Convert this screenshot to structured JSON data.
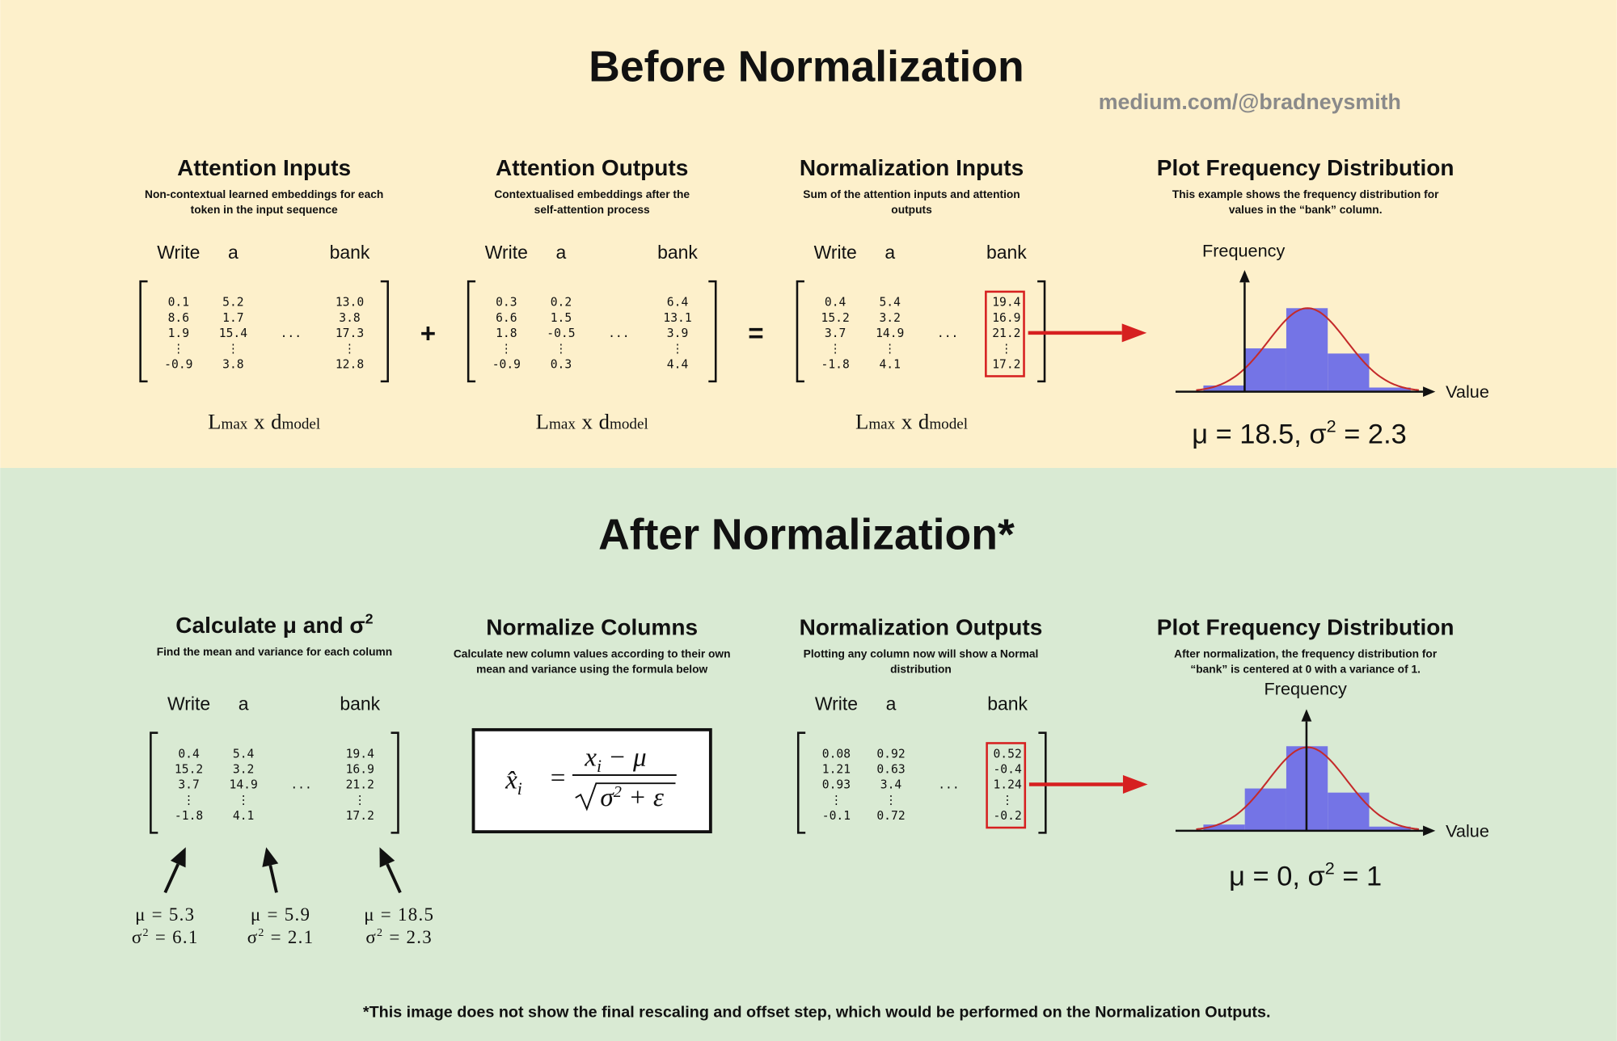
{
  "before": {
    "title": "Before Normalization",
    "source": "medium.com/@bradneysmith",
    "panels": [
      {
        "title": "Attention Inputs",
        "subtitle": [
          "Non-contextual learned embeddings for each",
          "token in the input sequence"
        ],
        "matrix": {
          "headers": [
            "Write",
            "a",
            "bank"
          ],
          "columns": [
            [
              "0.1",
              "8.6",
              "1.9",
              "⋮",
              "-0.9"
            ],
            [
              "5.2",
              "1.7",
              "15.4",
              "⋮",
              "3.8"
            ],
            [
              "13.0",
              "3.8",
              "17.3",
              "⋮",
              "12.8"
            ]
          ],
          "hdots": "..."
        },
        "dims": {
          "rows": "L",
          "rows_sub": "max",
          "times": "x",
          "cols": "d",
          "cols_sub": "model"
        }
      },
      {
        "title": "Attention Outputs",
        "subtitle": [
          "Contextualised embeddings after the",
          "self-attention process"
        ],
        "matrix": {
          "headers": [
            "Write",
            "a",
            "bank"
          ],
          "columns": [
            [
              "0.3",
              "6.6",
              "1.8",
              "⋮",
              "-0.9"
            ],
            [
              "0.2",
              "1.5",
              "-0.5",
              "⋮",
              "0.3"
            ],
            [
              "6.4",
              "13.1",
              "3.9",
              "⋮",
              "4.4"
            ]
          ],
          "hdots": "..."
        },
        "dims": {
          "rows": "L",
          "rows_sub": "max",
          "times": "x",
          "cols": "d",
          "cols_sub": "model"
        }
      },
      {
        "title": "Normalization Inputs",
        "subtitle": [
          "Sum of the attention inputs and attention",
          "outputs"
        ],
        "matrix": {
          "headers": [
            "Write",
            "a",
            "bank"
          ],
          "columns": [
            [
              "0.4",
              "15.2",
              "3.7",
              "⋮",
              "-1.8"
            ],
            [
              "5.4",
              "3.2",
              "14.9",
              "⋮",
              "4.1"
            ],
            [
              "19.4",
              "16.9",
              "21.2",
              "⋮",
              "17.2"
            ]
          ],
          "hdots": "..."
        },
        "dims": {
          "rows": "L",
          "rows_sub": "max",
          "times": "x",
          "cols": "d",
          "cols_sub": "model"
        }
      }
    ],
    "operators": [
      "+",
      "="
    ],
    "plot": {
      "title": "Plot Frequency Distribution",
      "subtitle": [
        "This example shows the frequency distribution for",
        "values in the “bank” column."
      ],
      "y_label": "Frequency",
      "x_label": "Value",
      "stats": {
        "text": "μ = 18.5, σ",
        "sup": "2",
        "rest": " = 2.3"
      }
    }
  },
  "after": {
    "title": "After Normalization*",
    "calculate": {
      "title": "Calculate μ and σ",
      "title_sup": "2",
      "subtitle": [
        "Find the mean and variance for each column"
      ],
      "matrix": {
        "headers": [
          "Write",
          "a",
          "bank"
        ],
        "columns": [
          [
            "0.4",
            "15.2",
            "3.7",
            "⋮",
            "-1.8"
          ],
          [
            "5.4",
            "3.2",
            "14.9",
            "⋮",
            "4.1"
          ],
          [
            "19.4",
            "16.9",
            "21.2",
            "⋮",
            "17.2"
          ]
        ],
        "hdots": "..."
      },
      "stats": [
        {
          "mean": "μ = 5.3",
          "var": "σ",
          "var_sup": "2",
          "var_rest": " = 6.1"
        },
        {
          "mean": "μ = 5.9",
          "var": "σ",
          "var_sup": "2",
          "var_rest": " = 2.1"
        },
        {
          "mean": "μ = 18.5",
          "var": "σ",
          "var_sup": "2",
          "var_rest": " = 2.3"
        }
      ]
    },
    "normalize": {
      "title": "Normalize Columns",
      "subtitle": [
        "Calculate new column values according to their own",
        "mean and variance using the formula below"
      ],
      "formula": {
        "lhs": "x̂",
        "lhs_sub": "i",
        "eq": "=",
        "num": "x",
        "num_sub": "i",
        "num_rest": " − μ",
        "den": "σ",
        "den_sup": "2",
        "den_rest": " + ε"
      }
    },
    "outputs": {
      "title": "Normalization Outputs",
      "subtitle": [
        "Plotting any column now will show a Normal",
        "distribution"
      ],
      "matrix": {
        "headers": [
          "Write",
          "a",
          "bank"
        ],
        "columns": [
          [
            "0.08",
            "1.21",
            "0.93",
            "⋮",
            "-0.1"
          ],
          [
            "0.92",
            "0.63",
            "3.4",
            "⋮",
            "0.72"
          ],
          [
            "0.52",
            "-0.4",
            "1.24",
            "⋮",
            "-0.2"
          ]
        ],
        "hdots": "..."
      }
    },
    "plot": {
      "title": "Plot Frequency Distribution",
      "subtitle": [
        "After normalization, the frequency distribution for",
        "“bank” is centered at 0 with a variance of 1."
      ],
      "y_label": "Frequency",
      "x_label": "Value",
      "stats": {
        "text": "μ = 0, σ",
        "sup": "2",
        "rest": " = 1"
      }
    },
    "footnote": "*This image does not show the final rescaling and offset step, which would be performed on the Normalization Outputs."
  }
}
